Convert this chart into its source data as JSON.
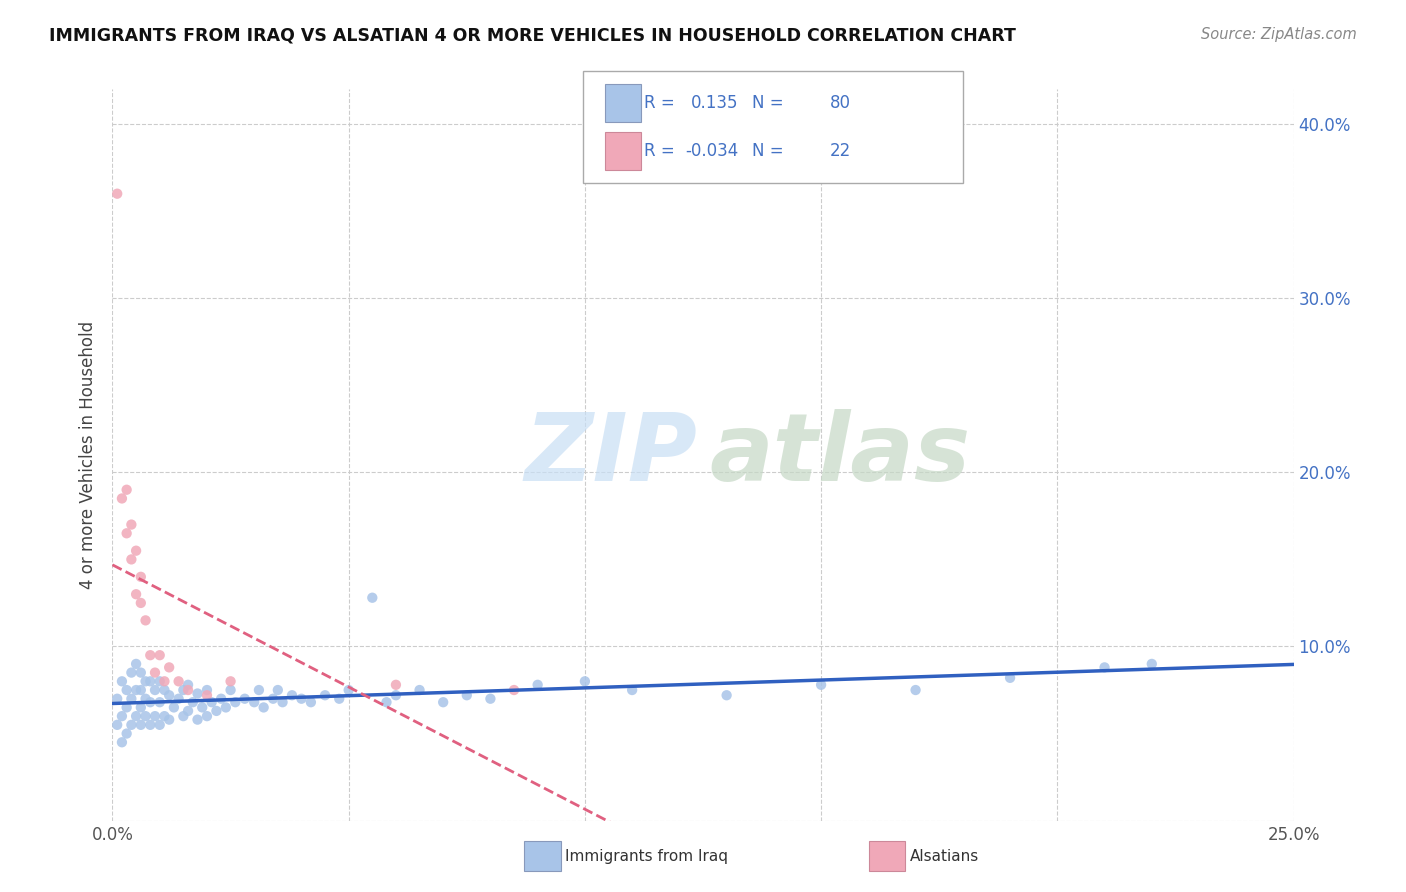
{
  "title": "IMMIGRANTS FROM IRAQ VS ALSATIAN 4 OR MORE VEHICLES IN HOUSEHOLD CORRELATION CHART",
  "source_text": "Source: ZipAtlas.com",
  "ylabel": "4 or more Vehicles in Household",
  "xlim": [
    0.0,
    0.25
  ],
  "ylim": [
    0.0,
    0.42
  ],
  "xtick_vals": [
    0.0,
    0.05,
    0.1,
    0.15,
    0.2,
    0.25
  ],
  "xtick_labels": [
    "0.0%",
    "",
    "",
    "",
    "",
    "25.0%"
  ],
  "ytick_vals": [
    0.0,
    0.1,
    0.2,
    0.3,
    0.4
  ],
  "ytick_labels_right": [
    "",
    "10.0%",
    "20.0%",
    "30.0%",
    "40.0%"
  ],
  "r_iraq": 0.135,
  "n_iraq": 80,
  "r_alsatian": -0.034,
  "n_alsatian": 22,
  "iraq_color": "#a8c4e8",
  "alsatian_color": "#f0a8b8",
  "iraq_line_color": "#3060c0",
  "alsatian_line_color": "#e06080",
  "background_color": "#ffffff",
  "iraq_x": [
    0.001,
    0.001,
    0.002,
    0.002,
    0.002,
    0.003,
    0.003,
    0.003,
    0.004,
    0.004,
    0.004,
    0.005,
    0.005,
    0.005,
    0.006,
    0.006,
    0.006,
    0.006,
    0.007,
    0.007,
    0.007,
    0.008,
    0.008,
    0.008,
    0.009,
    0.009,
    0.01,
    0.01,
    0.01,
    0.011,
    0.011,
    0.012,
    0.012,
    0.013,
    0.014,
    0.015,
    0.015,
    0.016,
    0.016,
    0.017,
    0.018,
    0.018,
    0.019,
    0.02,
    0.02,
    0.021,
    0.022,
    0.023,
    0.024,
    0.025,
    0.026,
    0.028,
    0.03,
    0.031,
    0.032,
    0.034,
    0.035,
    0.036,
    0.038,
    0.04,
    0.042,
    0.045,
    0.048,
    0.05,
    0.055,
    0.058,
    0.06,
    0.065,
    0.07,
    0.075,
    0.08,
    0.09,
    0.1,
    0.11,
    0.13,
    0.15,
    0.17,
    0.19,
    0.21,
    0.22
  ],
  "iraq_y": [
    0.055,
    0.07,
    0.045,
    0.06,
    0.08,
    0.05,
    0.065,
    0.075,
    0.055,
    0.07,
    0.085,
    0.06,
    0.075,
    0.09,
    0.055,
    0.065,
    0.075,
    0.085,
    0.06,
    0.07,
    0.08,
    0.055,
    0.068,
    0.08,
    0.06,
    0.075,
    0.055,
    0.068,
    0.08,
    0.06,
    0.075,
    0.058,
    0.072,
    0.065,
    0.07,
    0.06,
    0.075,
    0.063,
    0.078,
    0.068,
    0.058,
    0.073,
    0.065,
    0.06,
    0.075,
    0.068,
    0.063,
    0.07,
    0.065,
    0.075,
    0.068,
    0.07,
    0.068,
    0.075,
    0.065,
    0.07,
    0.075,
    0.068,
    0.072,
    0.07,
    0.068,
    0.072,
    0.07,
    0.075,
    0.128,
    0.068,
    0.072,
    0.075,
    0.068,
    0.072,
    0.07,
    0.078,
    0.08,
    0.075,
    0.072,
    0.078,
    0.075,
    0.082,
    0.088,
    0.09
  ],
  "alsatian_x": [
    0.001,
    0.002,
    0.003,
    0.003,
    0.004,
    0.004,
    0.005,
    0.005,
    0.006,
    0.006,
    0.007,
    0.008,
    0.009,
    0.01,
    0.011,
    0.012,
    0.014,
    0.016,
    0.02,
    0.025,
    0.06,
    0.085
  ],
  "alsatian_y": [
    0.36,
    0.185,
    0.165,
    0.19,
    0.15,
    0.17,
    0.13,
    0.155,
    0.125,
    0.14,
    0.115,
    0.095,
    0.085,
    0.095,
    0.08,
    0.088,
    0.08,
    0.075,
    0.072,
    0.08,
    0.078,
    0.075
  ]
}
